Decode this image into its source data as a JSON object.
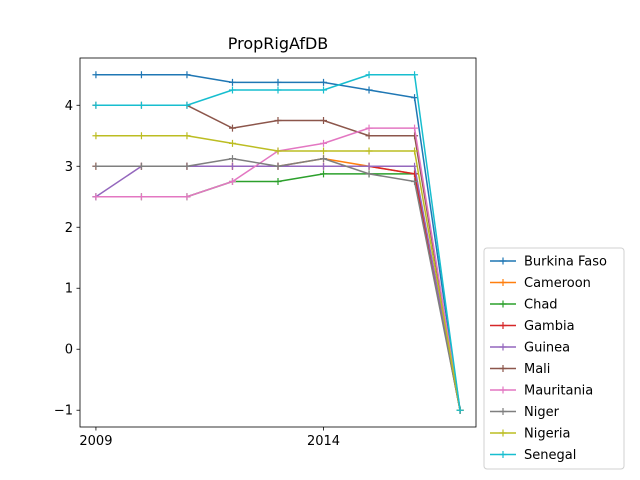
{
  "chart_data": {
    "type": "line",
    "title": "PropRigAfDB",
    "xlabel": "",
    "ylabel": "",
    "x": [
      2009,
      2010,
      2011,
      2012,
      2013,
      2014,
      2015,
      2016,
      2017
    ],
    "xlim": [
      2008.65,
      2017.35
    ],
    "ylim": [
      -1.275,
      4.775
    ],
    "xticks": [
      2009,
      2014
    ],
    "xtick_labels": [
      "2009",
      "2014"
    ],
    "yticks": [
      -1,
      0,
      1,
      2,
      3,
      4
    ],
    "ytick_labels": [
      "−1",
      "0",
      "1",
      "2",
      "3",
      "4"
    ],
    "grid": false,
    "legend_position": "outside-right-bottom",
    "series": [
      {
        "name": "Burkina Faso",
        "color": "#1f77b4",
        "values": [
          4.5,
          4.5,
          4.5,
          4.375,
          4.375,
          4.375,
          4.25,
          4.125,
          -1.0
        ]
      },
      {
        "name": "Cameroon",
        "color": "#ff7f0e",
        "values": [
          3.0,
          3.0,
          3.0,
          3.0,
          3.0,
          3.125,
          3.0,
          2.875,
          -1.0
        ]
      },
      {
        "name": "Chad",
        "color": "#2ca02c",
        "values": [
          2.5,
          2.5,
          2.5,
          2.75,
          2.75,
          2.875,
          2.875,
          2.875,
          -1.0
        ]
      },
      {
        "name": "Gambia",
        "color": "#d62728",
        "values": [
          3.0,
          3.0,
          3.0,
          3.0,
          3.0,
          3.0,
          3.0,
          2.875,
          -1.0
        ]
      },
      {
        "name": "Guinea",
        "color": "#9467bd",
        "values": [
          2.5,
          3.0,
          3.0,
          3.0,
          3.0,
          3.0,
          3.0,
          3.0,
          -1.0
        ]
      },
      {
        "name": "Mali",
        "color": "#8c564b",
        "values": [
          4.0,
          4.0,
          4.0,
          3.625,
          3.75,
          3.75,
          3.5,
          3.5,
          -1.0
        ]
      },
      {
        "name": "Mauritania",
        "color": "#e377c2",
        "values": [
          2.5,
          2.5,
          2.5,
          2.75,
          3.25,
          3.375,
          3.625,
          3.625,
          -1.0
        ]
      },
      {
        "name": "Niger",
        "color": "#7f7f7f",
        "values": [
          3.0,
          3.0,
          3.0,
          3.125,
          3.0,
          3.125,
          2.875,
          2.75,
          -1.0
        ]
      },
      {
        "name": "Nigeria",
        "color": "#bcbd22",
        "values": [
          3.5,
          3.5,
          3.5,
          3.375,
          3.25,
          3.25,
          3.25,
          3.25,
          -1.0
        ]
      },
      {
        "name": "Senegal",
        "color": "#17becf",
        "values": [
          4.0,
          4.0,
          4.0,
          4.25,
          4.25,
          4.25,
          4.5,
          4.5,
          -1.0
        ]
      }
    ]
  }
}
